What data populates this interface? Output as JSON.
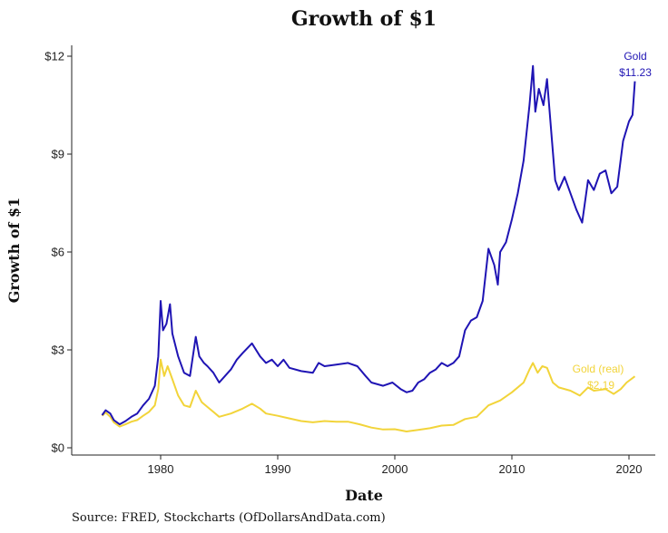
{
  "chart_data": {
    "type": "line",
    "title": "Growth of $1",
    "xlabel": "Date",
    "ylabel": "Growth of $1",
    "source": "Source:  FRED, Stockcharts (OfDollarsAndData.com)",
    "xlim": [
      1973.5,
      2022
    ],
    "ylim": [
      0,
      12.2
    ],
    "x_ticks": [
      1980,
      1990,
      2000,
      2010,
      2020
    ],
    "y_ticks": [
      0,
      3,
      6,
      9,
      12
    ],
    "y_tick_labels": [
      "$0",
      "$3",
      "$6",
      "$9",
      "$12"
    ],
    "grid": false,
    "series": [
      {
        "name": "Gold",
        "end_label": "$11.23",
        "color": "#1f14b4",
        "points": [
          [
            1975.0,
            1.0
          ],
          [
            1975.3,
            1.15
          ],
          [
            1975.7,
            1.05
          ],
          [
            1976.0,
            0.85
          ],
          [
            1976.5,
            0.72
          ],
          [
            1977.0,
            0.82
          ],
          [
            1977.5,
            0.95
          ],
          [
            1978.0,
            1.05
          ],
          [
            1978.5,
            1.3
          ],
          [
            1979.0,
            1.5
          ],
          [
            1979.5,
            1.9
          ],
          [
            1979.8,
            2.8
          ],
          [
            1980.0,
            4.5
          ],
          [
            1980.2,
            3.6
          ],
          [
            1980.5,
            3.8
          ],
          [
            1980.8,
            4.4
          ],
          [
            1981.0,
            3.5
          ],
          [
            1981.5,
            2.8
          ],
          [
            1982.0,
            2.3
          ],
          [
            1982.5,
            2.2
          ],
          [
            1983.0,
            3.4
          ],
          [
            1983.3,
            2.8
          ],
          [
            1983.7,
            2.6
          ],
          [
            1984.0,
            2.5
          ],
          [
            1984.5,
            2.3
          ],
          [
            1985.0,
            2.0
          ],
          [
            1985.5,
            2.2
          ],
          [
            1986.0,
            2.4
          ],
          [
            1986.5,
            2.7
          ],
          [
            1987.0,
            2.9
          ],
          [
            1987.8,
            3.2
          ],
          [
            1988.5,
            2.8
          ],
          [
            1989.0,
            2.6
          ],
          [
            1989.5,
            2.7
          ],
          [
            1990.0,
            2.5
          ],
          [
            1990.5,
            2.7
          ],
          [
            1991.0,
            2.45
          ],
          [
            1992.0,
            2.35
          ],
          [
            1993.0,
            2.3
          ],
          [
            1993.5,
            2.6
          ],
          [
            1994.0,
            2.5
          ],
          [
            1995.0,
            2.55
          ],
          [
            1996.0,
            2.6
          ],
          [
            1996.8,
            2.5
          ],
          [
            1997.5,
            2.2
          ],
          [
            1998.0,
            2.0
          ],
          [
            1999.0,
            1.9
          ],
          [
            1999.8,
            2.0
          ],
          [
            2000.5,
            1.8
          ],
          [
            2001.0,
            1.7
          ],
          [
            2001.5,
            1.75
          ],
          [
            2002.0,
            2.0
          ],
          [
            2002.5,
            2.1
          ],
          [
            2003.0,
            2.3
          ],
          [
            2003.5,
            2.4
          ],
          [
            2004.0,
            2.6
          ],
          [
            2004.5,
            2.5
          ],
          [
            2005.0,
            2.6
          ],
          [
            2005.5,
            2.8
          ],
          [
            2006.0,
            3.6
          ],
          [
            2006.5,
            3.9
          ],
          [
            2007.0,
            4.0
          ],
          [
            2007.5,
            4.5
          ],
          [
            2008.0,
            6.1
          ],
          [
            2008.5,
            5.6
          ],
          [
            2008.8,
            5.0
          ],
          [
            2009.0,
            6.0
          ],
          [
            2009.5,
            6.3
          ],
          [
            2010.0,
            7.0
          ],
          [
            2010.5,
            7.8
          ],
          [
            2011.0,
            8.8
          ],
          [
            2011.5,
            10.5
          ],
          [
            2011.8,
            11.7
          ],
          [
            2012.0,
            10.3
          ],
          [
            2012.3,
            11.0
          ],
          [
            2012.7,
            10.5
          ],
          [
            2013.0,
            11.3
          ],
          [
            2013.4,
            9.5
          ],
          [
            2013.7,
            8.2
          ],
          [
            2014.0,
            7.9
          ],
          [
            2014.5,
            8.3
          ],
          [
            2015.0,
            7.8
          ],
          [
            2015.5,
            7.3
          ],
          [
            2016.0,
            6.9
          ],
          [
            2016.5,
            8.2
          ],
          [
            2017.0,
            7.9
          ],
          [
            2017.5,
            8.4
          ],
          [
            2018.0,
            8.5
          ],
          [
            2018.5,
            7.8
          ],
          [
            2019.0,
            8.0
          ],
          [
            2019.5,
            9.4
          ],
          [
            2020.0,
            10.0
          ],
          [
            2020.3,
            10.2
          ],
          [
            2020.5,
            11.23
          ]
        ]
      },
      {
        "name": "Gold (real)",
        "end_label": "$2.19",
        "color": "#f2d43a",
        "points": [
          [
            1975.0,
            0.98
          ],
          [
            1975.3,
            1.08
          ],
          [
            1975.7,
            0.95
          ],
          [
            1976.0,
            0.78
          ],
          [
            1976.5,
            0.65
          ],
          [
            1977.0,
            0.72
          ],
          [
            1977.5,
            0.8
          ],
          [
            1978.0,
            0.85
          ],
          [
            1978.5,
            0.98
          ],
          [
            1979.0,
            1.1
          ],
          [
            1979.5,
            1.3
          ],
          [
            1979.8,
            1.8
          ],
          [
            1980.0,
            2.7
          ],
          [
            1980.3,
            2.2
          ],
          [
            1980.6,
            2.5
          ],
          [
            1981.0,
            2.1
          ],
          [
            1981.5,
            1.6
          ],
          [
            1982.0,
            1.3
          ],
          [
            1982.5,
            1.25
          ],
          [
            1983.0,
            1.75
          ],
          [
            1983.5,
            1.4
          ],
          [
            1984.0,
            1.25
          ],
          [
            1984.5,
            1.1
          ],
          [
            1985.0,
            0.95
          ],
          [
            1986.0,
            1.05
          ],
          [
            1987.0,
            1.2
          ],
          [
            1987.8,
            1.35
          ],
          [
            1988.5,
            1.2
          ],
          [
            1989.0,
            1.05
          ],
          [
            1990.0,
            0.98
          ],
          [
            1991.0,
            0.9
          ],
          [
            1992.0,
            0.82
          ],
          [
            1993.0,
            0.78
          ],
          [
            1994.0,
            0.82
          ],
          [
            1995.0,
            0.8
          ],
          [
            1996.0,
            0.8
          ],
          [
            1997.0,
            0.72
          ],
          [
            1998.0,
            0.62
          ],
          [
            1999.0,
            0.56
          ],
          [
            2000.0,
            0.57
          ],
          [
            2001.0,
            0.5
          ],
          [
            2002.0,
            0.55
          ],
          [
            2003.0,
            0.6
          ],
          [
            2004.0,
            0.68
          ],
          [
            2005.0,
            0.7
          ],
          [
            2006.0,
            0.88
          ],
          [
            2007.0,
            0.95
          ],
          [
            2008.0,
            1.3
          ],
          [
            2009.0,
            1.45
          ],
          [
            2010.0,
            1.7
          ],
          [
            2011.0,
            2.0
          ],
          [
            2011.5,
            2.4
          ],
          [
            2011.8,
            2.6
          ],
          [
            2012.2,
            2.3
          ],
          [
            2012.6,
            2.5
          ],
          [
            2013.0,
            2.45
          ],
          [
            2013.5,
            2.0
          ],
          [
            2014.0,
            1.85
          ],
          [
            2015.0,
            1.75
          ],
          [
            2015.8,
            1.6
          ],
          [
            2016.5,
            1.85
          ],
          [
            2017.0,
            1.75
          ],
          [
            2018.0,
            1.8
          ],
          [
            2018.7,
            1.65
          ],
          [
            2019.3,
            1.8
          ],
          [
            2019.8,
            2.0
          ],
          [
            2020.5,
            2.19
          ]
        ]
      }
    ]
  }
}
